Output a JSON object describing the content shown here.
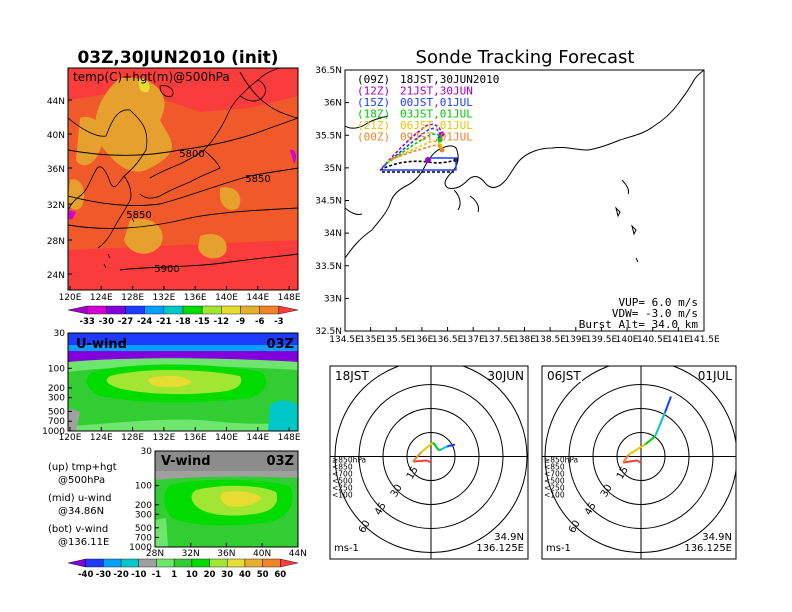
{
  "colors": {
    "temp": [
      "#a000c8",
      "#d200d2",
      "#8200dc",
      "#1e3cff",
      "#00a0ff",
      "#00c8c8",
      "#00dc00",
      "#a0e632",
      "#e6dc32",
      "#e6af2d",
      "#f08228",
      "#fa3c3c"
    ],
    "wind": [
      "#1e3cff",
      "#00a0ff",
      "#00c8c8",
      "#a0a0a0",
      "#6ee66e",
      "#32cd32",
      "#00dc00",
      "#a0e632",
      "#e6dc32",
      "#e6af2d",
      "#f08228",
      "#fa3c3c"
    ],
    "tracks": [
      "#000000",
      "#a000c8",
      "#1e3cff",
      "#00c800",
      "#e6c800",
      "#f08228"
    ]
  },
  "left": {
    "map_title": "03Z,30JUN2010 (init)",
    "map_label": "temp(C)+hgt(m)@500hPa",
    "map_lat_labels": [
      "44N",
      "40N",
      "36N",
      "32N",
      "28N",
      "24N"
    ],
    "map_lon_labels": [
      "120E",
      "124E",
      "128E",
      "132E",
      "136E",
      "140E",
      "144E",
      "148E"
    ],
    "contour_labels": [
      "5800",
      "5850",
      "5850",
      "5900"
    ],
    "temp_scale": [
      "-33",
      "-30",
      "-27",
      "-24",
      "-21",
      "-18",
      "-15",
      "-12",
      "-9",
      "-6",
      "-3"
    ],
    "u_title": "U-wind",
    "u_time": "03Z",
    "v_title": "V-wind",
    "v_time": "03Z",
    "press_labels": [
      "30",
      "100",
      "200",
      "300",
      "500",
      "700",
      "1000"
    ],
    "u_lon_labels": [
      "120E",
      "124E",
      "128E",
      "132E",
      "136E",
      "140E",
      "144E",
      "148E"
    ],
    "v_lat_labels": [
      "28N",
      "32N",
      "36N",
      "40N",
      "44N"
    ],
    "wind_scale": [
      "-40",
      "-30",
      "-20",
      "-10",
      "-1",
      "1",
      "10",
      "20",
      "30",
      "40",
      "50",
      "60"
    ],
    "legend": [
      {
        "a": "(up) tmp+hgt",
        "b": "@500hPa"
      },
      {
        "a": "(mid) u-wind",
        "b": "@34.86N"
      },
      {
        "a": "(bot) v-wind",
        "b": "@136.11E"
      }
    ]
  },
  "right": {
    "title": "Sonde Tracking Forecast",
    "tracks": [
      {
        "tag": "(09Z)",
        "label": "18JST,30JUN2010"
      },
      {
        "tag": "(12Z)",
        "label": "21JST,30JUN"
      },
      {
        "tag": "(15Z)",
        "label": "00JST,01JUL"
      },
      {
        "tag": "(18Z)",
        "label": "03JST,01JUL"
      },
      {
        "tag": "(21Z)",
        "label": "06JST,01JUL"
      },
      {
        "tag": "(00Z)",
        "label": "09JST,01JUL"
      }
    ],
    "lat_labels": [
      "36.5N",
      "36N",
      "35.5N",
      "35N",
      "34.5N",
      "34N",
      "33.5N",
      "33N",
      "32.5N"
    ],
    "lon_labels": [
      "134.5E",
      "135E",
      "135.5E",
      "136E",
      "136.5E",
      "137E",
      "137.5E",
      "138E",
      "138.5E",
      "139E",
      "139.5E",
      "140E",
      "140.5E",
      "141E",
      "141.5E"
    ],
    "vup": "VUP= 6.0 m/s",
    "vdw": "VDW= -3.0 m/s",
    "burst": "Burst Alt= 34.0 km",
    "hodographs": [
      {
        "left": "18JST",
        "right": "30JUN",
        "rings": [
          "15",
          "30",
          "45",
          "60"
        ],
        "unit": "ms-1",
        "lat": "34.9N",
        "lon": "136.125E",
        "levels": [
          "≥850hPa",
          "<850",
          "<700",
          "<500",
          "<250",
          "<100"
        ]
      },
      {
        "left": "06JST",
        "right": "01JUL",
        "rings": [
          "15",
          "30",
          "45",
          "60"
        ],
        "unit": "ms-1",
        "lat": "34.9N",
        "lon": "136.125E",
        "levels": [
          "≥850hPa",
          "<850",
          "<700",
          "<500",
          "<250",
          "<100"
        ]
      }
    ]
  }
}
